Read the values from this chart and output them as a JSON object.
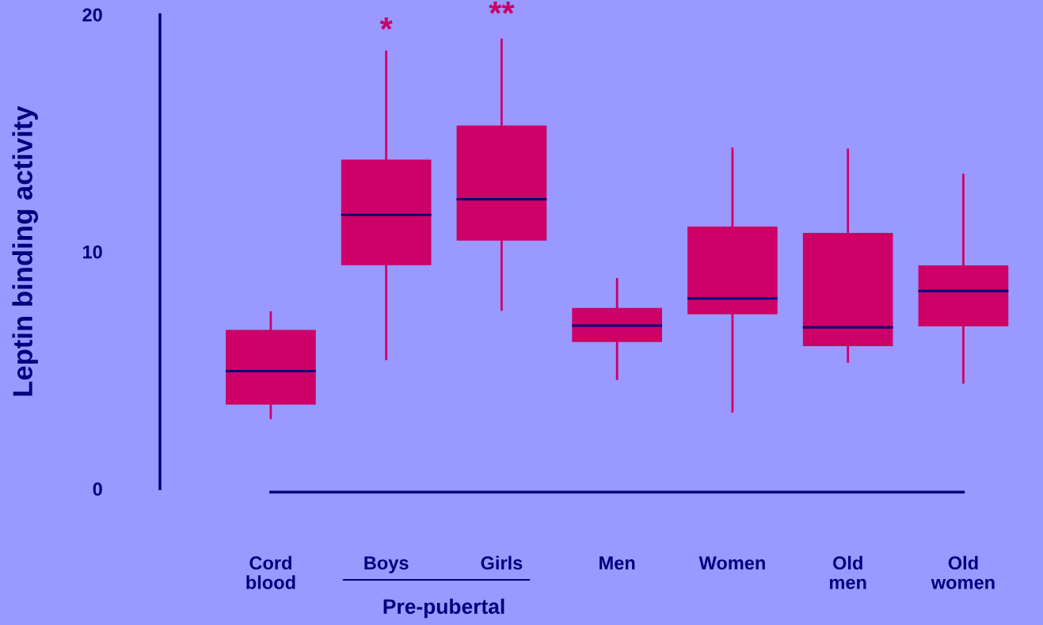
{
  "chart_data": {
    "type": "box",
    "ylabel": "Leptin binding activity",
    "categories": [
      "Cord\nblood",
      "Boys",
      "Girls",
      "Men",
      "Women",
      "Old\nmen",
      "Old\nwomen"
    ],
    "ylim": [
      0,
      20
    ],
    "yticks": [
      0,
      10,
      20
    ],
    "grid": false,
    "series": [
      {
        "color": "#cc0066",
        "boxes": [
          {
            "low": 2.97,
            "q1": 3.55,
            "median": 4.96,
            "q3": 6.7,
            "high": 7.45
          },
          {
            "low": 5.46,
            "q1": 9.43,
            "median": 11.55,
            "q3": 13.88,
            "high": 18.45
          },
          {
            "low": 7.54,
            "q1": 10.47,
            "median": 12.21,
            "q3": 15.32,
            "high": 18.95
          },
          {
            "low": 4.62,
            "q1": 6.19,
            "median": 6.88,
            "q3": 7.63,
            "high": 8.85
          },
          {
            "low": 3.25,
            "q1": 7.36,
            "median": 8.03,
            "q3": 11.06,
            "high": 14.35
          },
          {
            "low": 5.35,
            "q1": 6.01,
            "median": 6.81,
            "q3": 10.79,
            "high": 14.31
          },
          {
            "low": 4.47,
            "q1": 6.85,
            "median": 8.34,
            "q3": 9.42,
            "high": 13.25
          }
        ]
      }
    ],
    "annotations": [
      "*",
      "**",
      "Pre-pubertal"
    ]
  }
}
